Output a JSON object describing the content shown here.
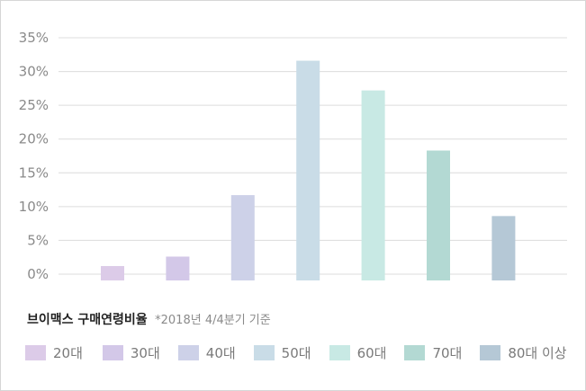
{
  "chart_data": {
    "type": "bar",
    "categories": [
      "20대",
      "30대",
      "40대",
      "50대",
      "60대",
      "70대",
      "80대 이상"
    ],
    "values": [
      1.2,
      2.6,
      11.7,
      31.6,
      27.2,
      18.3,
      8.6
    ],
    "colors": [
      "#dccbe8",
      "#d3c8e8",
      "#cdd1e8",
      "#c9dce7",
      "#c8e9e4",
      "#b3d9d3",
      "#b5c8d6"
    ],
    "ylim": [
      0,
      35
    ],
    "yticks": [
      "0%",
      "5%",
      "10%",
      "15%",
      "20%",
      "25%",
      "30%",
      "35%"
    ],
    "grid": true,
    "legend_position": "bottom"
  },
  "caption": {
    "title": "브이맥스 구매연령비율",
    "note": "*2018년 4/4분기 기준"
  }
}
